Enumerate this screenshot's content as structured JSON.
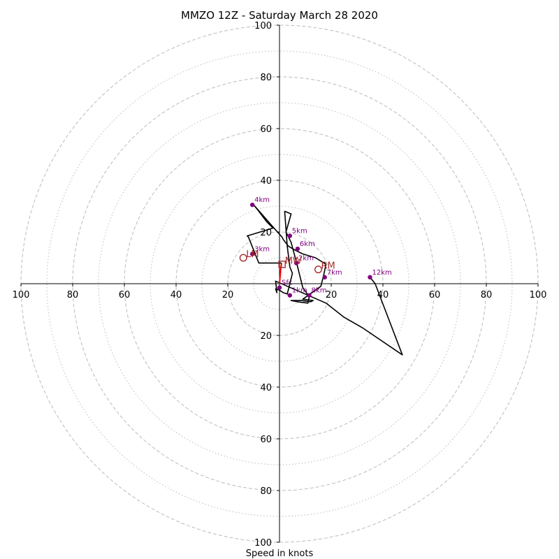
{
  "chart_data": {
    "type": "hodograph",
    "title": "MMZO 12Z - Saturday March 28 2020",
    "xlabel": "Speed in knots",
    "rings": [
      10,
      20,
      30,
      40,
      50,
      60,
      70,
      80,
      90,
      100
    ],
    "axis_ticks": [
      "20",
      "40",
      "60",
      "80",
      "100"
    ],
    "colors": {
      "profile": "#000000",
      "lowest": "#ff0000",
      "markers": "#800080",
      "motion": "#a52a2a",
      "rings": "#bbbbbb"
    },
    "profile_lowest": [
      [
        0.0,
        0.0
      ],
      [
        0.5,
        6.0
      ],
      [
        0.8,
        8.0
      ]
    ],
    "profile": [
      [
        0.8,
        8.0
      ],
      [
        -8.0,
        8.0
      ],
      [
        -12.0,
        18.0
      ],
      [
        -12.5,
        18.5
      ],
      [
        -2.5,
        21.5
      ],
      [
        -5.0,
        24.0
      ],
      [
        -8.0,
        28.0
      ],
      [
        -10.0,
        30.5
      ],
      [
        -3.0,
        22.5
      ],
      [
        1.0,
        18.0
      ],
      [
        1.5,
        17.0
      ],
      [
        3.5,
        14.5
      ],
      [
        6.0,
        13.0
      ],
      [
        8.0,
        12.0
      ],
      [
        9.0,
        11.5
      ],
      [
        14.0,
        10.0
      ],
      [
        18.0,
        7.5
      ],
      [
        17.0,
        3.0
      ],
      [
        16.0,
        -1.0
      ],
      [
        9.0,
        -6.0
      ],
      [
        13.0,
        -6.5
      ],
      [
        12.0,
        -7.0
      ],
      [
        8.5,
        -6.5
      ],
      [
        4.5,
        -6.5
      ],
      [
        7.0,
        -7.0
      ],
      [
        11.0,
        -7.5
      ],
      [
        11.5,
        -5.0
      ],
      [
        9.0,
        -1.5
      ],
      [
        6.5,
        8.5
      ],
      [
        4.5,
        16.0
      ],
      [
        2.5,
        20.0
      ],
      [
        4.5,
        27.0
      ],
      [
        2.0,
        28.0
      ],
      [
        3.0,
        14.5
      ],
      [
        4.0,
        6.5
      ],
      [
        5.0,
        4.0
      ],
      [
        3.0,
        -4.0
      ],
      [
        1.5,
        -3.5
      ],
      [
        0.0,
        -2.5
      ],
      [
        -1.5,
        -2.0
      ],
      [
        -1.0,
        -3.5
      ],
      [
        -1.5,
        1.0
      ],
      [
        18.0,
        -7.5
      ],
      [
        25.0,
        -13.0
      ],
      [
        32.0,
        -17.0
      ],
      [
        47.5,
        -27.5
      ],
      [
        37.0,
        0.0
      ],
      [
        35.0,
        2.5
      ]
    ],
    "height_markers": [
      {
        "label": "1km",
        "u": 4.0,
        "v": -4.5
      },
      {
        "label": "2km",
        "u": 6.5,
        "v": 8.0
      },
      {
        "label": "3km",
        "u": -10.5,
        "v": 11.5
      },
      {
        "label": "4km",
        "u": -10.5,
        "v": 30.5
      },
      {
        "label": "5km",
        "u": 4.0,
        "v": 18.5
      },
      {
        "label": "6km",
        "u": 7.0,
        "v": 13.5
      },
      {
        "label": "7km",
        "u": 17.5,
        "v": 2.5
      },
      {
        "label": "8km",
        "u": 11.5,
        "v": -4.5
      },
      {
        "label": "12km",
        "u": 35.0,
        "v": 2.5
      },
      {
        "label": "Sfc",
        "u": 0.0,
        "v": -1.5
      }
    ],
    "storm_motions": [
      {
        "label": "MW",
        "u": 1.0,
        "v": 7.5,
        "marker": "square"
      },
      {
        "label": "LM",
        "u": -14.0,
        "v": 10.0,
        "marker": "circle"
      },
      {
        "label": "RM",
        "u": 15.0,
        "v": 5.5,
        "marker": "circle"
      }
    ]
  }
}
